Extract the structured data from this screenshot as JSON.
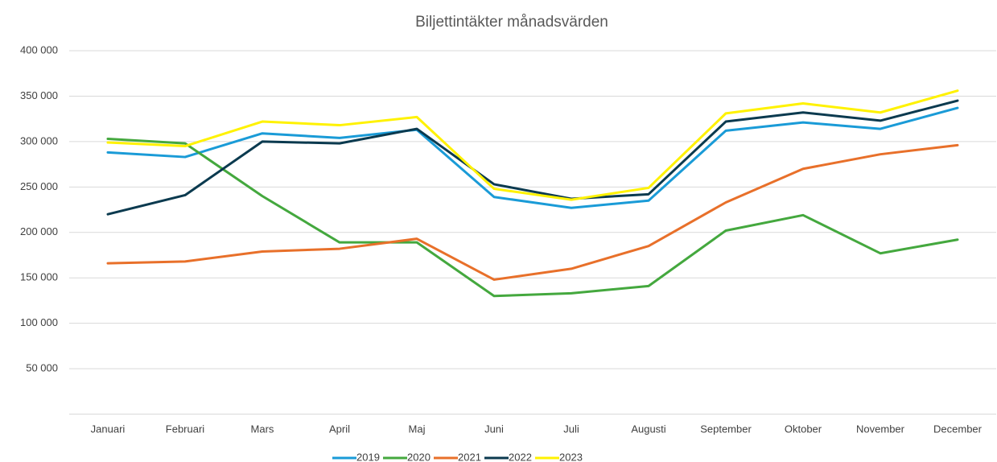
{
  "chart_data": {
    "type": "line",
    "title": "Biljettintäkter månadsvärden",
    "categories": [
      "Januari",
      "Februari",
      "Mars",
      "April",
      "Maj",
      "Juni",
      "Juli",
      "Augusti",
      "September",
      "Oktober",
      "November",
      "December"
    ],
    "series": [
      {
        "name": "2019",
        "color": "#1a9bd7",
        "values": [
          288000,
          283000,
          309000,
          304000,
          313000,
          239000,
          227000,
          235000,
          312000,
          321000,
          314000,
          337000
        ]
      },
      {
        "name": "2020",
        "color": "#44a83e",
        "values": [
          303000,
          298000,
          240000,
          189000,
          189000,
          130000,
          133000,
          141000,
          202000,
          219000,
          177000,
          192000
        ]
      },
      {
        "name": "2021",
        "color": "#e8702a",
        "values": [
          166000,
          168000,
          179000,
          182000,
          193000,
          148000,
          160000,
          185000,
          233000,
          270000,
          286000,
          296000
        ]
      },
      {
        "name": "2022",
        "color": "#0b3a4f",
        "values": [
          220000,
          241000,
          300000,
          298000,
          314000,
          253000,
          237000,
          242000,
          322000,
          332000,
          323000,
          345000
        ]
      },
      {
        "name": "2023",
        "color": "#fff200",
        "values": [
          299000,
          295000,
          322000,
          318000,
          327000,
          248000,
          236000,
          249000,
          331000,
          342000,
          332000,
          356000
        ]
      }
    ],
    "ylim": [
      0,
      400000
    ],
    "yticks": [
      {
        "value": 50000,
        "label": "50 000"
      },
      {
        "value": 100000,
        "label": "100 000"
      },
      {
        "value": 150000,
        "label": "150 000"
      },
      {
        "value": 200000,
        "label": "200 000"
      },
      {
        "value": 250000,
        "label": "250 000"
      },
      {
        "value": 300000,
        "label": "300 000"
      },
      {
        "value": 350000,
        "label": "350 000"
      },
      {
        "value": 400000,
        "label": "400 000"
      }
    ],
    "grid": true,
    "legend": "bottom"
  }
}
